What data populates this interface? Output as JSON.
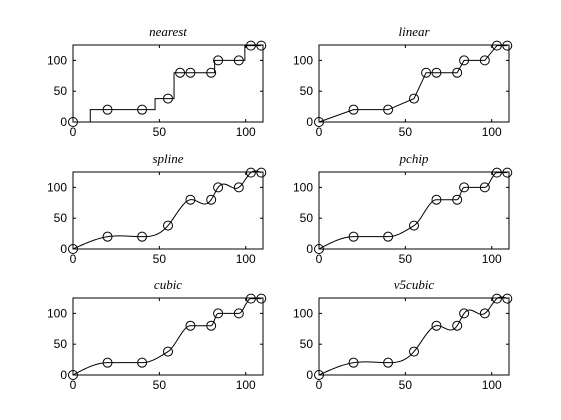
{
  "chart_data": [
    {
      "type": "line",
      "title": "nearest",
      "method": "nearest",
      "xlim": [
        0,
        110
      ],
      "ylim": [
        0,
        125
      ],
      "xticks": [
        0,
        50,
        100
      ],
      "yticks": [
        0,
        50,
        100
      ],
      "grid": false,
      "series": [
        {
          "marker": "circle",
          "x": [
            0,
            20,
            40,
            55,
            62,
            68,
            80,
            84,
            96,
            103,
            109
          ],
          "y": [
            0,
            20,
            20,
            38,
            80,
            80,
            80,
            100,
            100,
            124,
            124
          ]
        }
      ]
    },
    {
      "type": "line",
      "title": "linear",
      "method": "linear",
      "xlim": [
        0,
        110
      ],
      "ylim": [
        0,
        125
      ],
      "xticks": [
        0,
        50,
        100
      ],
      "yticks": [
        0,
        50,
        100
      ],
      "grid": false,
      "series": [
        {
          "marker": "circle",
          "x": [
            0,
            20,
            40,
            55,
            62,
            68,
            80,
            84,
            96,
            103,
            109
          ],
          "y": [
            0,
            20,
            20,
            38,
            80,
            80,
            80,
            100,
            100,
            124,
            124
          ]
        }
      ]
    },
    {
      "type": "line",
      "title": "spline",
      "method": "spline",
      "xlim": [
        0,
        110
      ],
      "ylim": [
        0,
        125
      ],
      "xticks": [
        0,
        50,
        100
      ],
      "yticks": [
        0,
        50,
        100
      ],
      "grid": false,
      "series": [
        {
          "marker": "circle",
          "x": [
            0,
            20,
            40,
            55,
            68,
            80,
            84,
            96,
            103,
            109
          ],
          "y": [
            0,
            20,
            20,
            38,
            80,
            80,
            100,
            100,
            124,
            124
          ]
        }
      ]
    },
    {
      "type": "line",
      "title": "pchip",
      "method": "pchip",
      "xlim": [
        0,
        110
      ],
      "ylim": [
        0,
        125
      ],
      "xticks": [
        0,
        50,
        100
      ],
      "yticks": [
        0,
        50,
        100
      ],
      "grid": false,
      "series": [
        {
          "marker": "circle",
          "x": [
            0,
            20,
            40,
            55,
            68,
            80,
            84,
            96,
            103,
            109
          ],
          "y": [
            0,
            20,
            20,
            38,
            80,
            80,
            100,
            100,
            124,
            124
          ]
        }
      ]
    },
    {
      "type": "line",
      "title": "cubic",
      "method": "pchip",
      "xlim": [
        0,
        110
      ],
      "ylim": [
        0,
        125
      ],
      "xticks": [
        0,
        50,
        100
      ],
      "yticks": [
        0,
        50,
        100
      ],
      "grid": false,
      "series": [
        {
          "marker": "circle",
          "x": [
            0,
            20,
            40,
            55,
            68,
            80,
            84,
            96,
            103,
            109
          ],
          "y": [
            0,
            20,
            20,
            38,
            80,
            80,
            100,
            100,
            124,
            124
          ]
        }
      ]
    },
    {
      "type": "line",
      "title": "v5cubic",
      "method": "spline",
      "xlim": [
        0,
        110
      ],
      "ylim": [
        0,
        125
      ],
      "xticks": [
        0,
        50,
        100
      ],
      "yticks": [
        0,
        50,
        100
      ],
      "grid": false,
      "series": [
        {
          "marker": "circle",
          "x": [
            0,
            20,
            40,
            55,
            68,
            80,
            84,
            96,
            103,
            109
          ],
          "y": [
            0,
            20,
            20,
            38,
            80,
            80,
            100,
            100,
            124,
            124
          ]
        }
      ]
    }
  ]
}
